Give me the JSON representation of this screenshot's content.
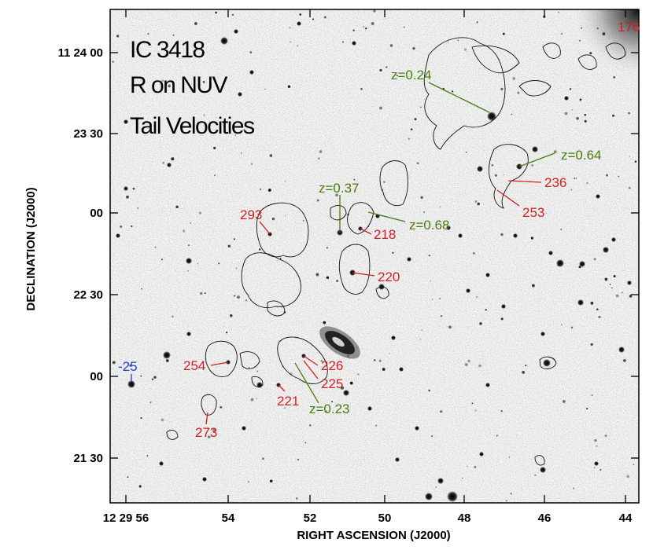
{
  "image": {
    "title_lines": [
      "IC 3418",
      "R on NUV",
      "Tail Velocities"
    ],
    "y_axis_label": "DECLINATION (J2000)",
    "x_axis_label": "RIGHT ASCENSION (J2000)",
    "y_ticks": [
      "11 24 00",
      "23 30",
      "00",
      "22 30",
      "00",
      "21 30"
    ],
    "x_ticks": [
      "12 29 56",
      "54",
      "52",
      "50",
      "48",
      "46",
      "44"
    ],
    "labels": {
      "v176": "176",
      "z024": "z=0.24",
      "z064": "z=0.64",
      "v236": "236",
      "v253": "253",
      "z037": "z=0.37",
      "z068": "z=0.68",
      "v293": "293",
      "v218": "218",
      "v220": "220",
      "vneg25": "-25",
      "v254": "254",
      "v226": "226",
      "v225": "225",
      "v221": "221",
      "z023": "z=0.23",
      "v273": "273"
    },
    "colors": {
      "velocity_label": "#d01f1f",
      "redshift_label": "#4a7c10",
      "negative_velocity_label": "#1f3fd0"
    }
  }
}
